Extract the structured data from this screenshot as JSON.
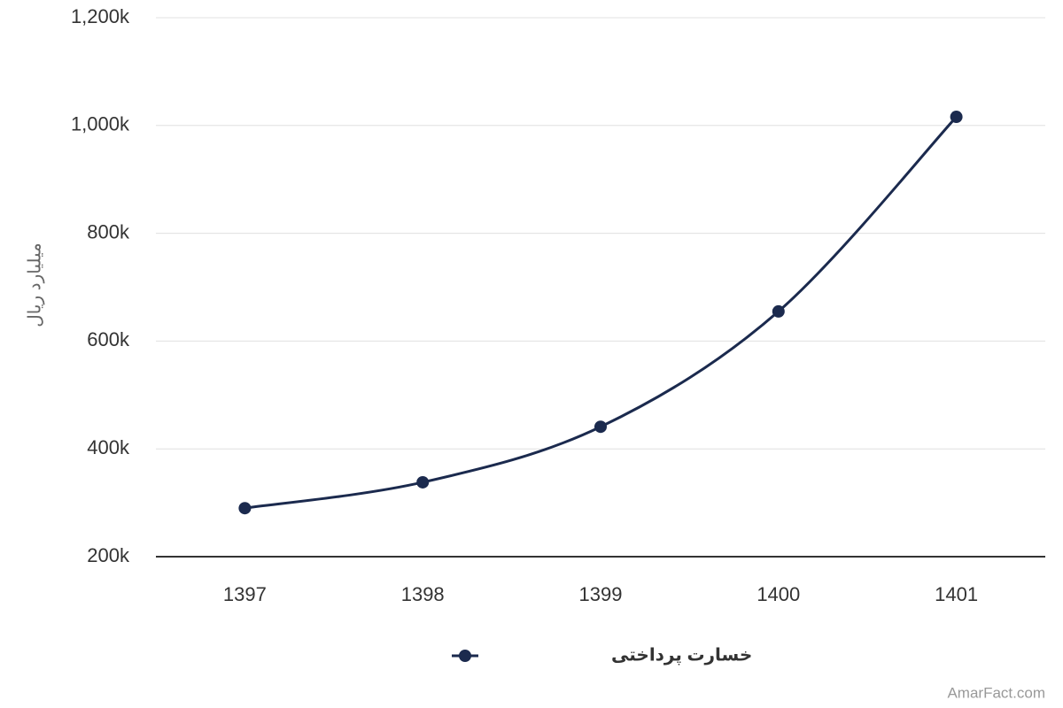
{
  "chart_data": {
    "type": "line",
    "y_label": "میلیارد ریال",
    "categories": [
      "1397",
      "1398",
      "1399",
      "1400",
      "1401"
    ],
    "series": [
      {
        "name": "خسارت پرداختی",
        "color": "#1b2a4e",
        "values": [
          290000,
          338000,
          441000,
          655000,
          1016000
        ]
      }
    ],
    "ylim": [
      200000,
      1200000
    ],
    "yticks": [
      {
        "value": 200000,
        "label": "200k"
      },
      {
        "value": 400000,
        "label": "400k"
      },
      {
        "value": 600000,
        "label": "600k"
      },
      {
        "value": 800000,
        "label": "800k"
      },
      {
        "value": 1000000,
        "label": "1,000k"
      },
      {
        "value": 1200000,
        "label": "1,200k"
      }
    ],
    "grid": true,
    "legend": "bottom",
    "credit": "AmarFact.com"
  }
}
